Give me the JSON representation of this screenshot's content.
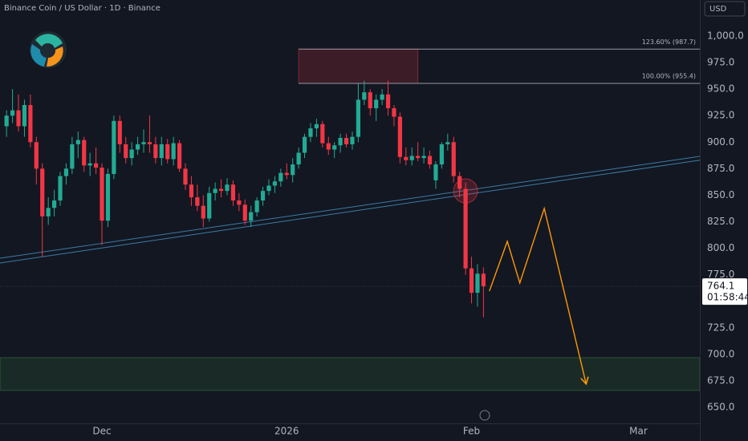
{
  "chart_data": {
    "type": "candlestick",
    "title": "Binance Coin / US Dollar · 1D · Binance",
    "currency": "USD",
    "up_color": "#22ab94",
    "down_color": "#f23645",
    "grid": false,
    "xlim": [
      -17.1,
      100.3
    ],
    "xticks": [
      {
        "value": 0,
        "label": "Dec"
      },
      {
        "value": 31,
        "label": "2026"
      },
      {
        "value": 62,
        "label": "Feb"
      },
      {
        "value": 90,
        "label": "Mar"
      }
    ],
    "ylim": [
      634.9,
      1034
    ],
    "yticks": [
      {
        "value": 650,
        "label": "650.0"
      },
      {
        "value": 675,
        "label": "675.0"
      },
      {
        "value": 700,
        "label": "700.0"
      },
      {
        "value": 725,
        "label": "725.0"
      },
      {
        "value": 750,
        "label": "750.0"
      },
      {
        "value": 775,
        "label": "775.0"
      },
      {
        "value": 800,
        "label": "800.0"
      },
      {
        "value": 825,
        "label": "825.0"
      },
      {
        "value": 850,
        "label": "850.0"
      },
      {
        "value": 875,
        "label": "875.0"
      },
      {
        "value": 900,
        "label": "900.0"
      },
      {
        "value": 925,
        "label": "925.0"
      },
      {
        "value": 950,
        "label": "950.0"
      },
      {
        "value": 975,
        "label": "975.0"
      },
      {
        "value": 1000,
        "label": "1,000.0"
      }
    ],
    "x": [
      -16,
      -15,
      -14,
      -13,
      -12,
      -11,
      -10,
      -9,
      -8,
      -7,
      -6,
      -5,
      -4,
      -3,
      -2,
      -1,
      0,
      1,
      2,
      3,
      4,
      5,
      6,
      7,
      8,
      9,
      10,
      11,
      12,
      13,
      14,
      15,
      16,
      17,
      18,
      19,
      20,
      21,
      22,
      23,
      24,
      25,
      26,
      27,
      28,
      29,
      30,
      31,
      32,
      33,
      34,
      35,
      36,
      37,
      38,
      39,
      40,
      41,
      42,
      43,
      44,
      45,
      46,
      47,
      48,
      49,
      50,
      51,
      52,
      53,
      54,
      55,
      56,
      57,
      58,
      59,
      60,
      61,
      62,
      63,
      64
    ],
    "open": [
      915,
      925,
      930,
      915,
      935,
      900,
      875,
      830,
      838,
      845,
      868,
      875,
      898,
      902,
      878,
      880,
      876,
      826,
      870,
      920,
      898,
      885,
      893,
      898,
      900,
      898,
      885,
      898,
      884,
      899,
      875,
      860,
      848,
      840,
      828,
      852,
      856,
      854,
      860,
      845,
      841,
      826,
      834,
      845,
      854,
      859,
      863,
      871,
      869,
      879,
      890,
      905,
      913,
      917,
      899,
      893,
      897,
      904,
      898,
      905,
      940,
      947,
      932,
      940,
      945,
      932,
      924,
      886,
      883,
      887,
      885,
      887,
      864,
      879,
      898,
      900,
      868,
      856,
      781,
      758,
      776
    ],
    "high": [
      930,
      950,
      945,
      940,
      945,
      905,
      880,
      848,
      855,
      872,
      880,
      905,
      910,
      905,
      890,
      895,
      880,
      875,
      925,
      925,
      905,
      900,
      905,
      912,
      925,
      905,
      905,
      903,
      905,
      902,
      880,
      868,
      860,
      850,
      858,
      862,
      865,
      866,
      864,
      852,
      846,
      840,
      848,
      858,
      865,
      868,
      875,
      880,
      885,
      895,
      908,
      918,
      922,
      920,
      905,
      900,
      908,
      908,
      910,
      955,
      958,
      950,
      945,
      950,
      958,
      935,
      928,
      895,
      895,
      900,
      895,
      892,
      882,
      900,
      908,
      905,
      872,
      862,
      792,
      785,
      782
    ],
    "low": [
      905,
      918,
      910,
      905,
      895,
      860,
      792,
      822,
      830,
      840,
      860,
      870,
      885,
      872,
      868,
      870,
      803,
      820,
      865,
      890,
      880,
      878,
      888,
      890,
      890,
      880,
      878,
      880,
      878,
      872,
      855,
      840,
      835,
      820,
      825,
      845,
      848,
      850,
      840,
      835,
      822,
      820,
      830,
      840,
      850,
      852,
      858,
      865,
      862,
      875,
      885,
      900,
      905,
      895,
      888,
      885,
      890,
      895,
      893,
      900,
      935,
      925,
      920,
      935,
      925,
      915,
      880,
      878,
      878,
      882,
      880,
      875,
      856,
      875,
      892,
      862,
      848,
      775,
      748,
      745,
      735
    ],
    "close": [
      925,
      930,
      915,
      935,
      900,
      875,
      830,
      838,
      845,
      868,
      875,
      898,
      902,
      878,
      880,
      876,
      826,
      870,
      920,
      898,
      885,
      893,
      898,
      900,
      898,
      885,
      898,
      884,
      899,
      875,
      860,
      848,
      840,
      828,
      852,
      856,
      854,
      860,
      845,
      841,
      826,
      834,
      845,
      854,
      859,
      863,
      871,
      869,
      879,
      890,
      905,
      913,
      917,
      899,
      893,
      897,
      904,
      898,
      905,
      940,
      947,
      932,
      940,
      945,
      932,
      924,
      886,
      883,
      887,
      885,
      887,
      879,
      879,
      898,
      900,
      868,
      856,
      781,
      758,
      776,
      764.1
    ],
    "last_price": {
      "value": 764.1,
      "countdown": "01:58:44"
    },
    "fib_levels": [
      {
        "value": 987.7,
        "label": "123.60% (987.7)"
      },
      {
        "value": 955.4,
        "label": "100.00% (955.4)"
      }
    ],
    "fib_range_x": [
      33,
      53
    ],
    "support_zone": [
      665.9,
      696.9
    ],
    "trendlines": [
      {
        "x": [
          -17.1,
          100.3
        ],
        "y": [
          790.6,
          886.6
        ]
      },
      {
        "x": [
          -17.1,
          100.3
        ],
        "y": [
          786.1,
          883
        ]
      }
    ],
    "projection": {
      "x": [
        65,
        68,
        70.1,
        74.2,
        81.2
      ],
      "y": [
        759.6,
        806.5,
        767.2,
        837.5,
        672.7
      ]
    },
    "highlight": {
      "x": 61,
      "y": 854
    }
  }
}
